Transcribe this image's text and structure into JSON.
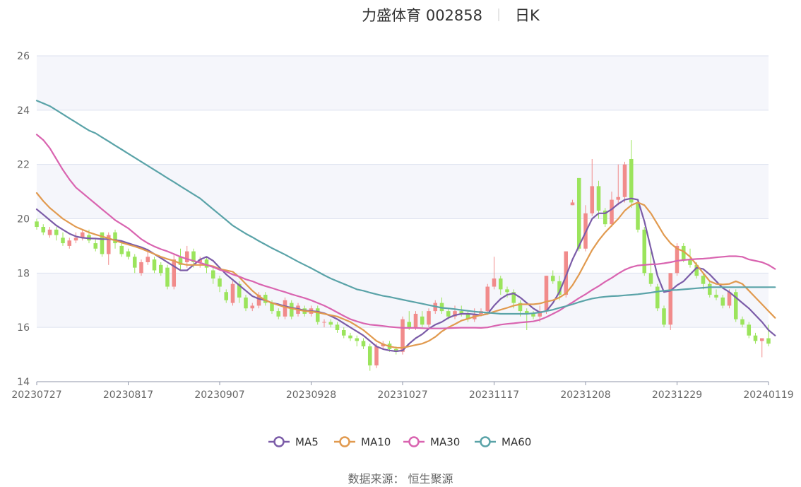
{
  "title": {
    "name": "力盛体育 002858",
    "period": "日K"
  },
  "source_text": "数据来源： 恒生聚源",
  "colors": {
    "up": "#f18b8b",
    "down": "#9be45c",
    "band": "#f5f6fb",
    "grid": "#dde2ef",
    "ma5": "#7b5ca8",
    "ma10": "#e19a4f",
    "ma30": "#d964b0",
    "ma60": "#5aa3a8"
  },
  "chart_data": {
    "type": "candlestick",
    "ylim": [
      14,
      26
    ],
    "yticks": [
      14,
      16,
      18,
      20,
      22,
      24,
      26
    ],
    "xlim": [
      "20230727",
      "20240119"
    ],
    "xticks": [
      "20230727",
      "20230817",
      "20230907",
      "20230928",
      "20231027",
      "20231117",
      "20231208",
      "20231229",
      "20240119"
    ],
    "legend_position": "bottom-center",
    "legend": [
      {
        "name": "MA5",
        "key": "ma5"
      },
      {
        "name": "MA10",
        "key": "ma10"
      },
      {
        "name": "MA30",
        "key": "ma30"
      },
      {
        "name": "MA60",
        "key": "ma60"
      }
    ],
    "candles": [
      [
        19.9,
        19.7,
        20.0,
        19.6
      ],
      [
        19.7,
        19.5,
        19.8,
        19.4
      ],
      [
        19.4,
        19.6,
        19.7,
        19.3
      ],
      [
        19.6,
        19.4,
        19.7,
        19.2
      ],
      [
        19.3,
        19.1,
        19.5,
        19.0
      ],
      [
        19.0,
        19.2,
        19.3,
        18.9
      ],
      [
        19.2,
        19.3,
        19.5,
        19.1
      ],
      [
        19.3,
        19.5,
        19.6,
        19.2
      ],
      [
        19.4,
        19.2,
        19.6,
        19.1
      ],
      [
        19.1,
        18.9,
        19.3,
        18.8
      ],
      [
        19.5,
        18.7,
        19.5,
        18.6
      ],
      [
        18.7,
        19.4,
        19.5,
        18.3
      ],
      [
        19.5,
        19.1,
        19.6,
        18.9
      ],
      [
        19.0,
        18.7,
        19.2,
        18.6
      ],
      [
        18.8,
        18.6,
        18.9,
        18.5
      ],
      [
        18.6,
        18.2,
        18.7,
        18.0
      ],
      [
        18.0,
        18.4,
        18.5,
        17.9
      ],
      [
        18.4,
        18.6,
        18.9,
        18.3
      ],
      [
        18.5,
        18.1,
        18.6,
        18.0
      ],
      [
        18.3,
        18.0,
        18.4,
        17.9
      ],
      [
        18.2,
        17.5,
        18.3,
        17.4
      ],
      [
        17.5,
        18.5,
        18.7,
        17.4
      ],
      [
        18.6,
        18.3,
        18.9,
        18.1
      ],
      [
        18.4,
        18.8,
        19.0,
        18.2
      ],
      [
        18.8,
        18.4,
        18.9,
        18.2
      ],
      [
        18.4,
        18.5,
        18.6,
        18.2
      ],
      [
        18.5,
        18.2,
        18.6,
        18.0
      ],
      [
        18.1,
        17.8,
        18.2,
        17.6
      ],
      [
        17.8,
        17.5,
        17.9,
        17.3
      ],
      [
        17.3,
        17.0,
        17.4,
        16.9
      ],
      [
        16.9,
        17.6,
        17.7,
        16.8
      ],
      [
        17.6,
        17.1,
        17.7,
        16.9
      ],
      [
        17.1,
        16.7,
        17.2,
        16.6
      ],
      [
        16.7,
        16.8,
        16.9,
        16.6
      ],
      [
        16.8,
        17.2,
        17.3,
        16.7
      ],
      [
        17.2,
        16.9,
        17.3,
        16.8
      ],
      [
        16.9,
        16.6,
        17.0,
        16.5
      ],
      [
        16.6,
        16.4,
        16.7,
        16.3
      ],
      [
        16.4,
        17.0,
        17.1,
        16.3
      ],
      [
        16.9,
        16.4,
        17.0,
        16.3
      ],
      [
        16.5,
        16.8,
        16.9,
        16.4
      ],
      [
        16.7,
        16.5,
        16.8,
        16.4
      ],
      [
        16.5,
        16.7,
        16.8,
        16.4
      ],
      [
        16.7,
        16.2,
        16.8,
        16.1
      ],
      [
        16.2,
        16.2,
        16.3,
        16.0
      ],
      [
        16.2,
        16.1,
        16.3,
        16.0
      ],
      [
        16.1,
        15.9,
        16.2,
        15.8
      ],
      [
        15.9,
        15.7,
        16.0,
        15.6
      ],
      [
        15.7,
        15.6,
        15.8,
        15.5
      ],
      [
        15.6,
        15.5,
        15.7,
        15.3
      ],
      [
        15.5,
        15.3,
        15.6,
        15.2
      ],
      [
        15.3,
        14.6,
        15.4,
        14.4
      ],
      [
        14.6,
        15.3,
        15.4,
        14.5
      ],
      [
        15.3,
        15.4,
        15.5,
        15.2
      ],
      [
        15.4,
        15.2,
        15.5,
        15.1
      ],
      [
        15.2,
        15.1,
        15.3,
        15.0
      ],
      [
        15.1,
        16.3,
        16.4,
        15.0
      ],
      [
        16.2,
        16.0,
        16.6,
        15.9
      ],
      [
        16.0,
        16.5,
        16.6,
        15.9
      ],
      [
        16.4,
        16.1,
        16.6,
        16.0
      ],
      [
        16.1,
        16.6,
        16.7,
        16.0
      ],
      [
        16.6,
        16.9,
        17.0,
        16.5
      ],
      [
        16.9,
        16.6,
        17.1,
        16.5
      ],
      [
        16.6,
        16.4,
        16.7,
        16.3
      ],
      [
        16.4,
        16.6,
        16.8,
        16.3
      ],
      [
        16.6,
        16.5,
        16.8,
        16.4
      ],
      [
        16.5,
        16.3,
        16.6,
        16.2
      ],
      [
        16.3,
        16.5,
        16.7,
        16.2
      ],
      [
        16.5,
        16.6,
        16.7,
        16.4
      ],
      [
        16.6,
        17.5,
        17.6,
        16.5
      ],
      [
        17.5,
        17.8,
        18.6,
        17.4
      ],
      [
        17.8,
        17.4,
        17.9,
        17.2
      ],
      [
        17.4,
        17.3,
        17.5,
        17.1
      ],
      [
        17.3,
        16.9,
        17.4,
        16.7
      ],
      [
        16.9,
        16.6,
        17.0,
        16.4
      ],
      [
        16.6,
        16.5,
        16.7,
        15.9
      ],
      [
        16.5,
        16.4,
        16.6,
        16.3
      ],
      [
        16.4,
        16.6,
        16.8,
        16.2
      ],
      [
        16.6,
        17.9,
        17.9,
        16.5
      ],
      [
        17.9,
        17.7,
        18.1,
        17.6
      ],
      [
        17.7,
        17.2,
        17.9,
        17.0
      ],
      [
        17.2,
        18.8,
        18.8,
        17.1
      ],
      [
        20.5,
        20.6,
        20.7,
        20.5
      ],
      [
        21.5,
        18.9,
        21.5,
        18.8
      ],
      [
        18.9,
        20.2,
        20.5,
        18.8
      ],
      [
        20.2,
        21.2,
        22.2,
        20.1
      ],
      [
        21.2,
        20.3,
        21.4,
        20.0
      ],
      [
        20.3,
        19.8,
        20.4,
        19.7
      ],
      [
        19.8,
        20.7,
        21.0,
        19.7
      ],
      [
        20.7,
        20.8,
        22.0,
        20.5
      ],
      [
        20.8,
        22.0,
        22.1,
        20.6
      ],
      [
        22.2,
        20.6,
        22.9,
        20.4
      ],
      [
        20.6,
        19.6,
        20.7,
        19.5
      ],
      [
        19.6,
        18.0,
        19.7,
        17.9
      ],
      [
        18.0,
        17.6,
        18.8,
        17.5
      ],
      [
        17.5,
        16.7,
        17.6,
        16.6
      ],
      [
        16.7,
        16.1,
        16.8,
        16.0
      ],
      [
        16.1,
        18.0,
        18.0,
        15.9
      ],
      [
        18.0,
        19.0,
        19.1,
        17.9
      ],
      [
        19.0,
        18.5,
        19.1,
        18.4
      ],
      [
        18.5,
        18.3,
        18.9,
        18.2
      ],
      [
        18.3,
        17.9,
        18.4,
        17.8
      ],
      [
        17.9,
        17.6,
        18.0,
        17.4
      ],
      [
        17.6,
        17.2,
        17.7,
        17.1
      ],
      [
        17.2,
        17.1,
        17.4,
        17.0
      ],
      [
        17.1,
        16.8,
        17.2,
        16.7
      ],
      [
        16.8,
        17.3,
        17.4,
        16.7
      ],
      [
        17.3,
        16.3,
        17.4,
        16.2
      ],
      [
        16.3,
        16.1,
        16.4,
        16.0
      ],
      [
        16.1,
        15.7,
        16.2,
        15.6
      ],
      [
        15.7,
        15.5,
        15.8,
        15.4
      ],
      [
        15.5,
        15.6,
        15.6,
        14.9
      ],
      [
        15.6,
        15.4,
        16.1,
        15.3
      ]
    ],
    "series": [
      {
        "name": "MA5",
        "values": [
          20.35,
          20.15,
          19.95,
          19.75,
          19.6,
          19.45,
          19.35,
          19.3,
          19.28,
          19.27,
          19.25,
          19.25,
          19.22,
          19.18,
          19.1,
          19.02,
          18.95,
          18.85,
          18.7,
          18.55,
          18.4,
          18.25,
          18.1,
          18.1,
          18.3,
          18.5,
          18.6,
          18.45,
          18.2,
          17.95,
          17.75,
          17.55,
          17.35,
          17.15,
          17.05,
          17.0,
          16.9,
          16.85,
          16.78,
          16.72,
          16.68,
          16.62,
          16.6,
          16.58,
          16.52,
          16.42,
          16.3,
          16.15,
          16.0,
          15.85,
          15.7,
          15.5,
          15.3,
          15.2,
          15.15,
          15.12,
          15.15,
          15.4,
          15.6,
          15.75,
          15.95,
          16.1,
          16.2,
          16.35,
          16.45,
          16.5,
          16.5,
          16.48,
          16.45,
          16.5,
          16.8,
          17.05,
          17.2,
          17.25,
          17.1,
          16.9,
          16.7,
          16.55,
          16.6,
          16.9,
          17.3,
          17.9,
          18.5,
          19.0,
          19.5,
          20.0,
          20.2,
          20.2,
          20.35,
          20.55,
          20.7,
          20.75,
          20.7,
          19.9,
          18.9,
          17.9,
          17.3,
          17.35,
          17.55,
          17.7,
          17.95,
          18.2,
          18.15,
          17.95,
          17.7,
          17.45,
          17.3,
          17.1,
          16.9,
          16.7,
          16.45,
          16.2,
          15.9,
          15.7
        ]
      },
      {
        "name": "MA10",
        "values": [
          20.95,
          20.65,
          20.4,
          20.2,
          20.0,
          19.85,
          19.7,
          19.6,
          19.5,
          19.42,
          19.35,
          19.28,
          19.2,
          19.12,
          19.05,
          18.98,
          18.9,
          18.8,
          18.7,
          18.6,
          18.52,
          18.45,
          18.35,
          18.3,
          18.3,
          18.3,
          18.3,
          18.25,
          18.15,
          18.1,
          18.05,
          17.85,
          17.6,
          17.35,
          17.15,
          17.0,
          16.9,
          16.82,
          16.75,
          16.7,
          16.65,
          16.6,
          16.58,
          16.55,
          16.5,
          16.45,
          16.4,
          16.3,
          16.2,
          16.05,
          15.9,
          15.7,
          15.5,
          15.38,
          15.3,
          15.25,
          15.25,
          15.3,
          15.35,
          15.4,
          15.5,
          15.65,
          15.85,
          16.0,
          16.12,
          16.25,
          16.32,
          16.4,
          16.45,
          16.5,
          16.58,
          16.65,
          16.72,
          16.8,
          16.85,
          16.85,
          16.85,
          16.88,
          16.95,
          17.0,
          17.1,
          17.25,
          17.55,
          17.95,
          18.4,
          18.85,
          19.2,
          19.5,
          19.75,
          20.0,
          20.3,
          20.5,
          20.6,
          20.5,
          20.2,
          19.8,
          19.4,
          19.1,
          18.9,
          18.8,
          18.6,
          18.3,
          18.0,
          17.7,
          17.6,
          17.58,
          17.6,
          17.7,
          17.6,
          17.35,
          17.1,
          16.85,
          16.6,
          16.35
        ]
      },
      {
        "name": "MA30",
        "values": [
          23.1,
          22.9,
          22.6,
          22.2,
          21.8,
          21.45,
          21.15,
          20.95,
          20.75,
          20.55,
          20.35,
          20.15,
          19.95,
          19.8,
          19.65,
          19.45,
          19.25,
          19.1,
          18.98,
          18.88,
          18.8,
          18.7,
          18.6,
          18.52,
          18.45,
          18.38,
          18.3,
          18.22,
          18.12,
          18.05,
          17.95,
          17.87,
          17.77,
          17.7,
          17.6,
          17.52,
          17.45,
          17.37,
          17.3,
          17.22,
          17.15,
          17.08,
          17.0,
          16.9,
          16.8,
          16.68,
          16.55,
          16.42,
          16.3,
          16.22,
          16.15,
          16.1,
          16.08,
          16.05,
          16.02,
          16.0,
          15.98,
          15.98,
          15.98,
          15.97,
          15.96,
          15.96,
          15.96,
          15.97,
          15.98,
          15.99,
          15.99,
          15.99,
          15.98,
          16.0,
          16.05,
          16.1,
          16.13,
          16.15,
          16.18,
          16.2,
          16.22,
          16.28,
          16.38,
          16.5,
          16.62,
          16.78,
          16.92,
          17.08,
          17.22,
          17.38,
          17.52,
          17.68,
          17.82,
          17.98,
          18.12,
          18.22,
          18.28,
          18.3,
          18.32,
          18.33,
          18.36,
          18.4,
          18.45,
          18.48,
          18.5,
          18.52,
          18.53,
          18.55,
          18.58,
          18.6,
          18.62,
          18.62,
          18.6,
          18.5,
          18.45,
          18.4,
          18.3,
          18.15
        ]
      },
      {
        "name": "MA60",
        "values": [
          24.35,
          24.25,
          24.15,
          24.0,
          23.85,
          23.7,
          23.55,
          23.4,
          23.25,
          23.15,
          23.0,
          22.85,
          22.7,
          22.55,
          22.4,
          22.25,
          22.1,
          21.95,
          21.8,
          21.65,
          21.5,
          21.35,
          21.2,
          21.05,
          20.9,
          20.75,
          20.55,
          20.35,
          20.15,
          19.95,
          19.75,
          19.6,
          19.45,
          19.32,
          19.18,
          19.05,
          18.92,
          18.8,
          18.68,
          18.55,
          18.42,
          18.3,
          18.18,
          18.05,
          17.92,
          17.8,
          17.7,
          17.6,
          17.5,
          17.4,
          17.35,
          17.28,
          17.22,
          17.16,
          17.12,
          17.07,
          17.02,
          16.97,
          16.92,
          16.87,
          16.82,
          16.77,
          16.72,
          16.7,
          16.67,
          16.64,
          16.61,
          16.58,
          16.56,
          16.54,
          16.52,
          16.5,
          16.5,
          16.5,
          16.5,
          16.5,
          16.52,
          16.55,
          16.6,
          16.65,
          16.72,
          16.78,
          16.85,
          16.93,
          17.0,
          17.06,
          17.1,
          17.13,
          17.15,
          17.16,
          17.18,
          17.2,
          17.22,
          17.25,
          17.28,
          17.32,
          17.35,
          17.37,
          17.38,
          17.4,
          17.42,
          17.44,
          17.46,
          17.48,
          17.48,
          17.48,
          17.48,
          17.48,
          17.48,
          17.48,
          17.48,
          17.48,
          17.48,
          17.48
        ]
      }
    ]
  }
}
